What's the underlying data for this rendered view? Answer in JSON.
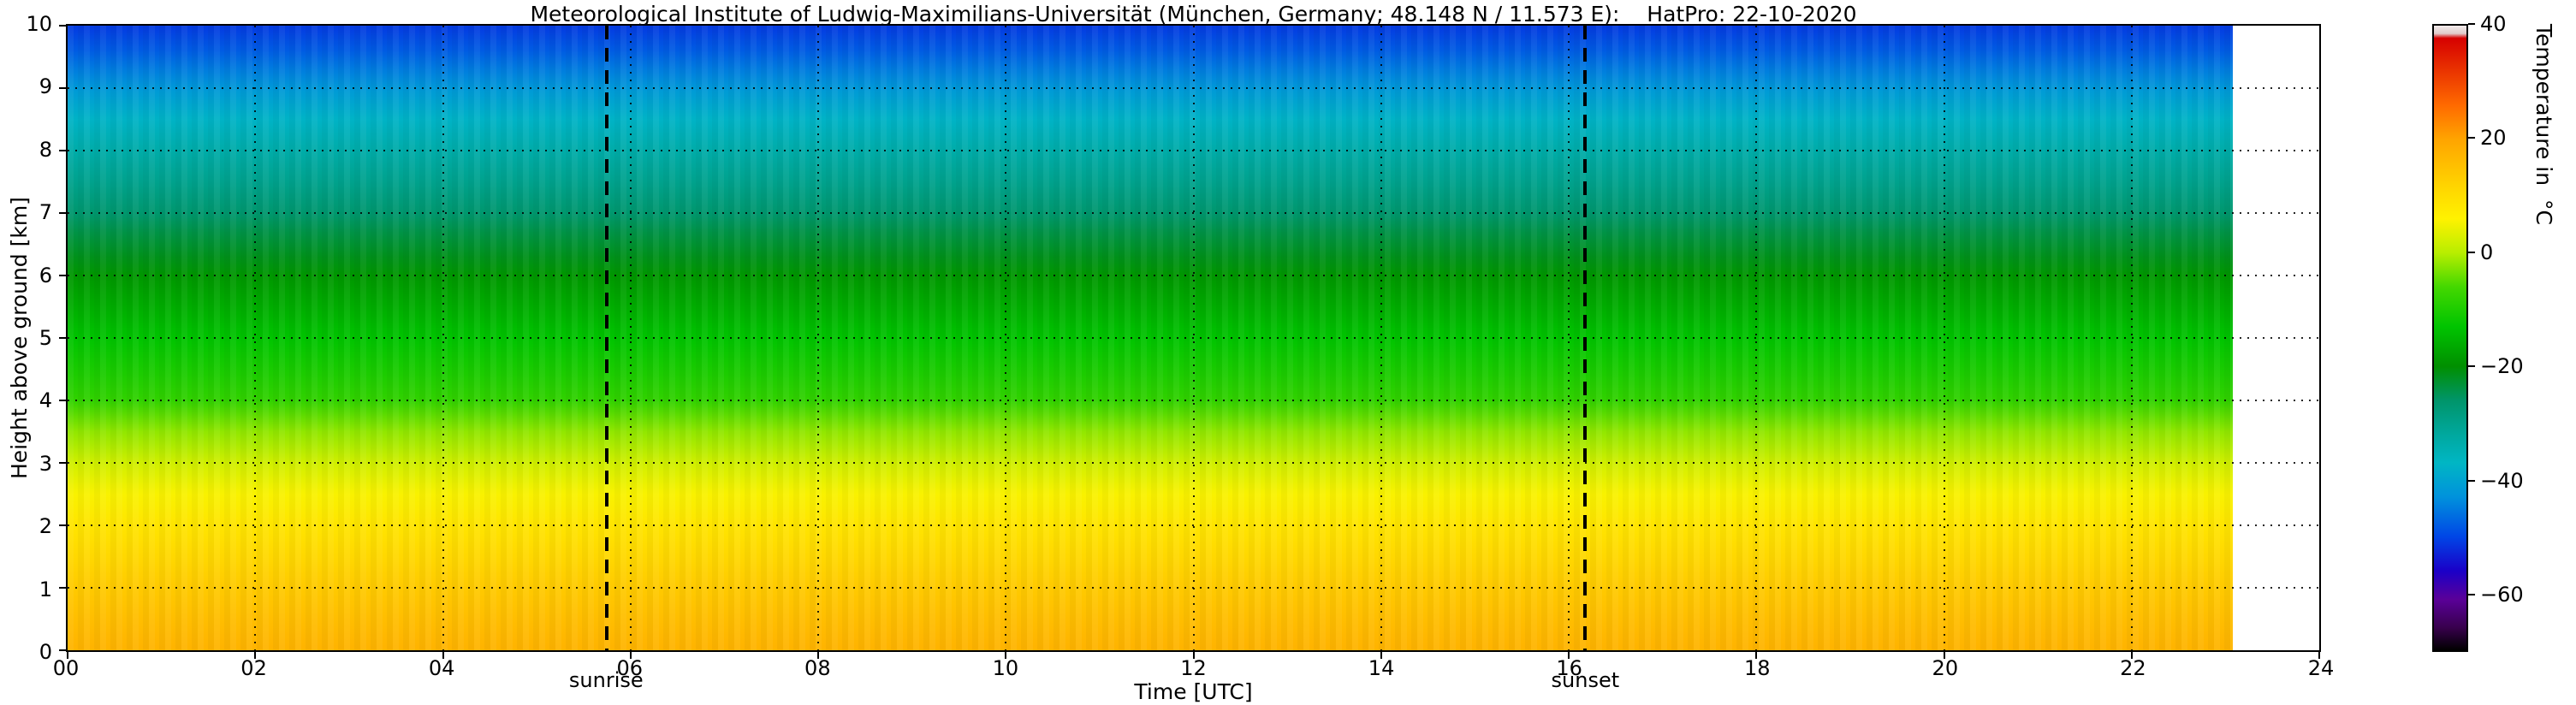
{
  "chart_data": {
    "type": "heatmap",
    "title": "Meteorological Institute of Ludwig-Maximilians-Universität (München, Germany; 48.148 N / 11.573 E):    HatPro: 22-10-2020",
    "xlabel": "Time [UTC]",
    "ylabel": "Height above ground [km]",
    "colorbar_label": "Temperature in  °C",
    "x_range": [
      0,
      24
    ],
    "y_range": [
      0,
      10
    ],
    "x_tick_values": [
      0,
      2,
      4,
      6,
      8,
      10,
      12,
      14,
      16,
      18,
      20,
      22,
      24
    ],
    "x_tick_labels": [
      "00",
      "02",
      "04",
      "06",
      "08",
      "10",
      "12",
      "14",
      "16",
      "18",
      "20",
      "22",
      "24"
    ],
    "y_tick_values": [
      0,
      1,
      2,
      3,
      4,
      5,
      6,
      7,
      8,
      9,
      10
    ],
    "y_tick_labels": [
      "0",
      "1",
      "2",
      "3",
      "4",
      "5",
      "6",
      "7",
      "8",
      "9",
      "10"
    ],
    "grid": "dotted",
    "data_time_extent_utc": [
      0,
      23.08
    ],
    "annotations": [
      {
        "label": "sunrise",
        "x_utc": 5.75
      },
      {
        "label": "sunset",
        "x_utc": 16.17
      }
    ],
    "colorbar": {
      "min": -70,
      "max": 40,
      "tick_values": [
        40,
        20,
        0,
        -20,
        -40,
        -60
      ],
      "tick_labels": [
        "40",
        "20",
        "0",
        "−20",
        "−40",
        "−60"
      ],
      "stops": [
        [
          40,
          "#f2ecec"
        ],
        [
          38.6,
          "#e0caca"
        ],
        [
          37.8,
          "#d60000"
        ],
        [
          26,
          "#ff6a00"
        ],
        [
          20,
          "#ffa400"
        ],
        [
          12,
          "#ffd300"
        ],
        [
          6,
          "#fff200"
        ],
        [
          0,
          "#b8ee00"
        ],
        [
          -6,
          "#44d800"
        ],
        [
          -13,
          "#00c400"
        ],
        [
          -20,
          "#008f00"
        ],
        [
          -26,
          "#00956a"
        ],
        [
          -32,
          "#00a89e"
        ],
        [
          -37,
          "#00b6c4"
        ],
        [
          -43,
          "#0092dc"
        ],
        [
          -50,
          "#0046e6"
        ],
        [
          -56,
          "#1a00c8"
        ],
        [
          -61,
          "#5a0099"
        ],
        [
          -66,
          "#38004d"
        ],
        [
          -70,
          "#000000"
        ]
      ]
    },
    "profile": {
      "note": "Temperature (°C) versus height above ground; field is approximately constant over the day",
      "heights_km": [
        0,
        0.5,
        1,
        1.5,
        2,
        2.5,
        3,
        3.5,
        4,
        4.5,
        5,
        5.5,
        6,
        6.3,
        6.7,
        7,
        7.5,
        8,
        8.5,
        9,
        9.3,
        9.6,
        10
      ],
      "temps_c": [
        17.5,
        15.5,
        13.5,
        11,
        8.5,
        5.5,
        2,
        -2,
        -8,
        -10.5,
        -13,
        -16,
        -19,
        -21.5,
        -24,
        -26.5,
        -30,
        -33.5,
        -37.5,
        -42,
        -45,
        -48,
        -51
      ]
    }
  }
}
